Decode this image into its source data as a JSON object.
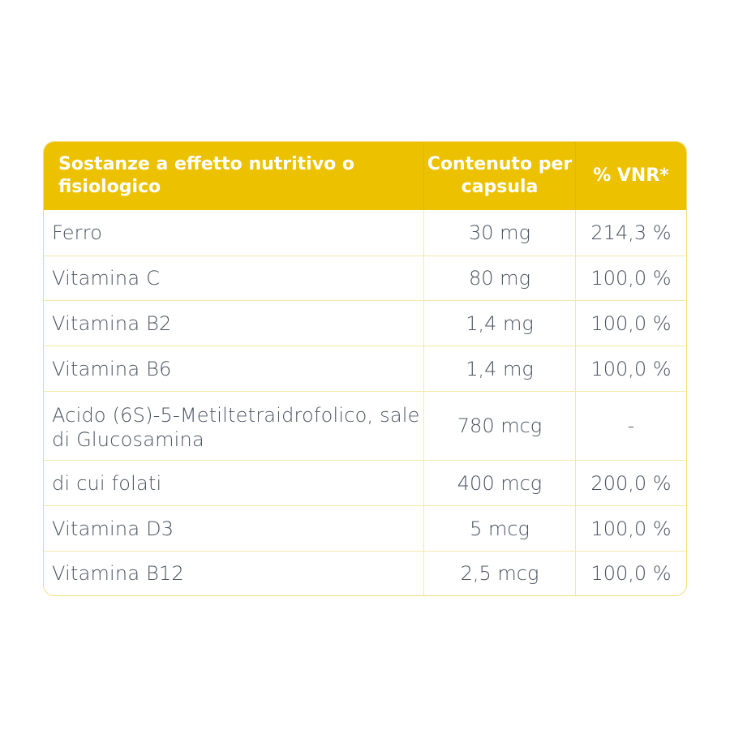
{
  "header": {
    "col1": "Sostanze a effetto nutritivo o fisiologico",
    "col2": "Contenuto per capsula",
    "col3": "% VNR*"
  },
  "colors": {
    "header_bg": "#ecc100",
    "border": "#f7e8a8",
    "text": "#4b5361"
  },
  "rows": [
    {
      "name": "Ferro",
      "amount": "30 mg",
      "vnr": "214,3 %"
    },
    {
      "name": "Vitamina C",
      "amount": "80 mg",
      "vnr": "100,0 %"
    },
    {
      "name": "Vitamina B2",
      "amount": "1,4 mg",
      "vnr": "100,0 %"
    },
    {
      "name": "Vitamina B6",
      "amount": "1,4 mg",
      "vnr": "100,0 %"
    },
    {
      "name": "Acido (6S)-5-Metiltetraidrofolico, sale di Glucosamina",
      "amount": "780 mcg",
      "vnr": "-"
    },
    {
      "name": "di cui folati",
      "amount": "400 mcg",
      "vnr": "200,0 %"
    },
    {
      "name": "Vitamina D3",
      "amount": "5 mcg",
      "vnr": "100,0 %"
    },
    {
      "name": "Vitamina B12",
      "amount": "2,5 mcg",
      "vnr": "100,0 %"
    }
  ]
}
